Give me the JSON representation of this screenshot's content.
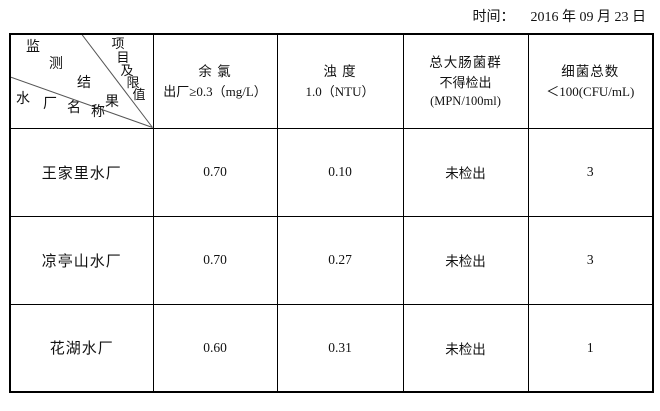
{
  "header": {
    "time_label": "时间：",
    "time_value": "2016 年 09 月 23 日"
  },
  "table": {
    "corner": {
      "top_label": "项目及限值",
      "middle_label": "监测结果",
      "bottom_label": "水厂名称"
    },
    "columns": [
      {
        "title": "余 氯",
        "limit": "出厂≥0.3（mg/L）"
      },
      {
        "title": "浊 度",
        "limit": "1.0（NTU）"
      },
      {
        "title": "总大肠菌群",
        "limit": "不得检出",
        "unit": "(MPN/100ml)"
      },
      {
        "title": "细菌总数",
        "limit": "＜100(CFU/mL)"
      }
    ],
    "rows": [
      {
        "plant": "王家里水厂",
        "residual_chlorine": "0.70",
        "turbidity": "0.10",
        "coliform": "未检出",
        "bacteria": "3"
      },
      {
        "plant": "凉亭山水厂",
        "residual_chlorine": "0.70",
        "turbidity": "0.27",
        "coliform": "未检出",
        "bacteria": "3"
      },
      {
        "plant": "花湖水厂",
        "residual_chlorine": "0.60",
        "turbidity": "0.31",
        "coliform": "未检出",
        "bacteria": "1"
      }
    ]
  },
  "colors": {
    "border": "#000000",
    "diagonal_line": "#555555",
    "text": "#111111",
    "background": "#ffffff"
  }
}
